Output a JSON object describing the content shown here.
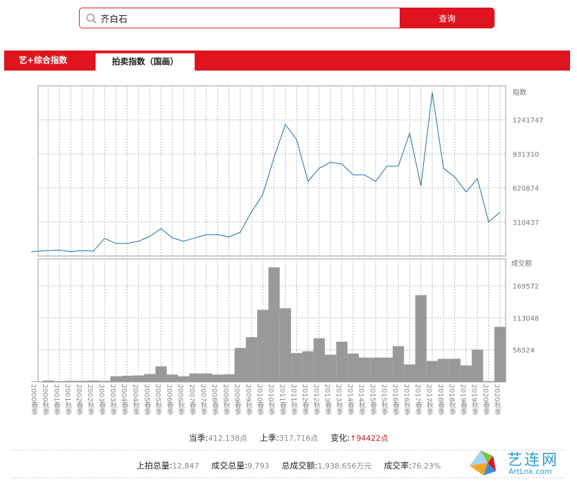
{
  "search": {
    "value": "齐白石",
    "button_label": "查询"
  },
  "tabs": [
    {
      "label": "艺+综合指数",
      "active": false
    },
    {
      "label": "拍卖指数（国画）",
      "active": true
    }
  ],
  "colors": {
    "brand_red": "#e0141e",
    "line_blue": "#1a6fa8",
    "bar_gray": "#999999",
    "grid": "#b5b5b5"
  },
  "chart_data": [
    {
      "type": "line",
      "ylabel": "指数",
      "yticks": [
        310437,
        620874,
        931310,
        1241747
      ],
      "ylim": [
        0,
        1552184
      ],
      "x": [
        "2000春季",
        "2000秋季",
        "2001春季",
        "2001秋季",
        "2002春季",
        "2002秋季",
        "2003春季",
        "2003秋季",
        "2004春季",
        "2004秋季",
        "2005春季",
        "2005秋季",
        "2006春季",
        "2006秋季",
        "2007春季",
        "2007秋季",
        "2008春季",
        "2008秋季",
        "2009春季",
        "2009秋季",
        "2010春季",
        "2010秋季",
        "2011春季",
        "2011秋季",
        "2012春季",
        "2012秋季",
        "2013春季",
        "2013秋季",
        "2014春季",
        "2014秋季",
        "2015春季",
        "2015秋季",
        "2016春季",
        "2016秋季",
        "2017春季",
        "2017秋季",
        "2018春季",
        "2018秋季",
        "2019春季",
        "2019秋季",
        "2020春季",
        "2020秋季"
      ],
      "values": [
        null,
        50000,
        55000,
        40000,
        50000,
        45000,
        160000,
        115000,
        115000,
        135000,
        180000,
        250000,
        165000,
        135000,
        165000,
        195000,
        195000,
        175000,
        215000,
        400000,
        560000,
        900000,
        1200000,
        1060000,
        680000,
        800000,
        855000,
        840000,
        740000,
        740000,
        680000,
        820000,
        820000,
        1120000,
        640000,
        1490000,
        800000,
        720000,
        585000,
        705000,
        310000,
        400000
      ]
    },
    {
      "type": "bar",
      "ylabel": "成交额",
      "yticks": [
        56524,
        113048,
        169572
      ],
      "ylim": [
        0,
        217000
      ],
      "categories": [
        "2000春季",
        "2000秋季",
        "2001春季",
        "2001秋季",
        "2002春季",
        "2002秋季",
        "2003春季",
        "2003秋季",
        "2004春季",
        "2004秋季",
        "2005春季",
        "2005秋季",
        "2006春季",
        "2006秋季",
        "2007春季",
        "2007秋季",
        "2008春季",
        "2008秋季",
        "2009春季",
        "2009秋季",
        "2010春季",
        "2010秋季",
        "2011春季",
        "2011秋季",
        "2012春季",
        "2012秋季",
        "2013春季",
        "2013秋季",
        "2014春季",
        "2014秋季",
        "2015春季",
        "2015秋季",
        "2016春季",
        "2016秋季",
        "2017春季",
        "2017秋季",
        "2018春季",
        "2018秋季",
        "2019春季",
        "2019秋季",
        "2020春季",
        "2020秋季"
      ],
      "values": [
        1000,
        2500,
        1500,
        2000,
        2000,
        2500,
        2000,
        10000,
        11000,
        11500,
        14000,
        27500,
        13000,
        10000,
        15000,
        15000,
        13000,
        13500,
        60000,
        79000,
        127000,
        202000,
        130000,
        51000,
        54000,
        77000,
        48000,
        71000,
        50000,
        43000,
        43000,
        43000,
        63000,
        31000,
        153000,
        37000,
        41000,
        41000,
        29000,
        57000,
        1500,
        97000
      ]
    }
  ],
  "stats_row1": {
    "current_label": "当季:",
    "current_value": "412,138点",
    "prev_label": "上季:",
    "prev_value": "317,716点",
    "change_label": "变化:",
    "change_value": "↑94422点"
  },
  "stats_row2": {
    "total_label": "上拍总量:",
    "total_value": "12,847",
    "deal_count_label": "成交总量:",
    "deal_count_value": "9,793",
    "deal_amount_label": "总成交额:",
    "deal_amount_value": "1,938,656万元",
    "rate_label": "成交率:",
    "rate_value": "76.23%"
  },
  "logo": {
    "cn": "艺连网",
    "en": "ArtLnk.com"
  }
}
